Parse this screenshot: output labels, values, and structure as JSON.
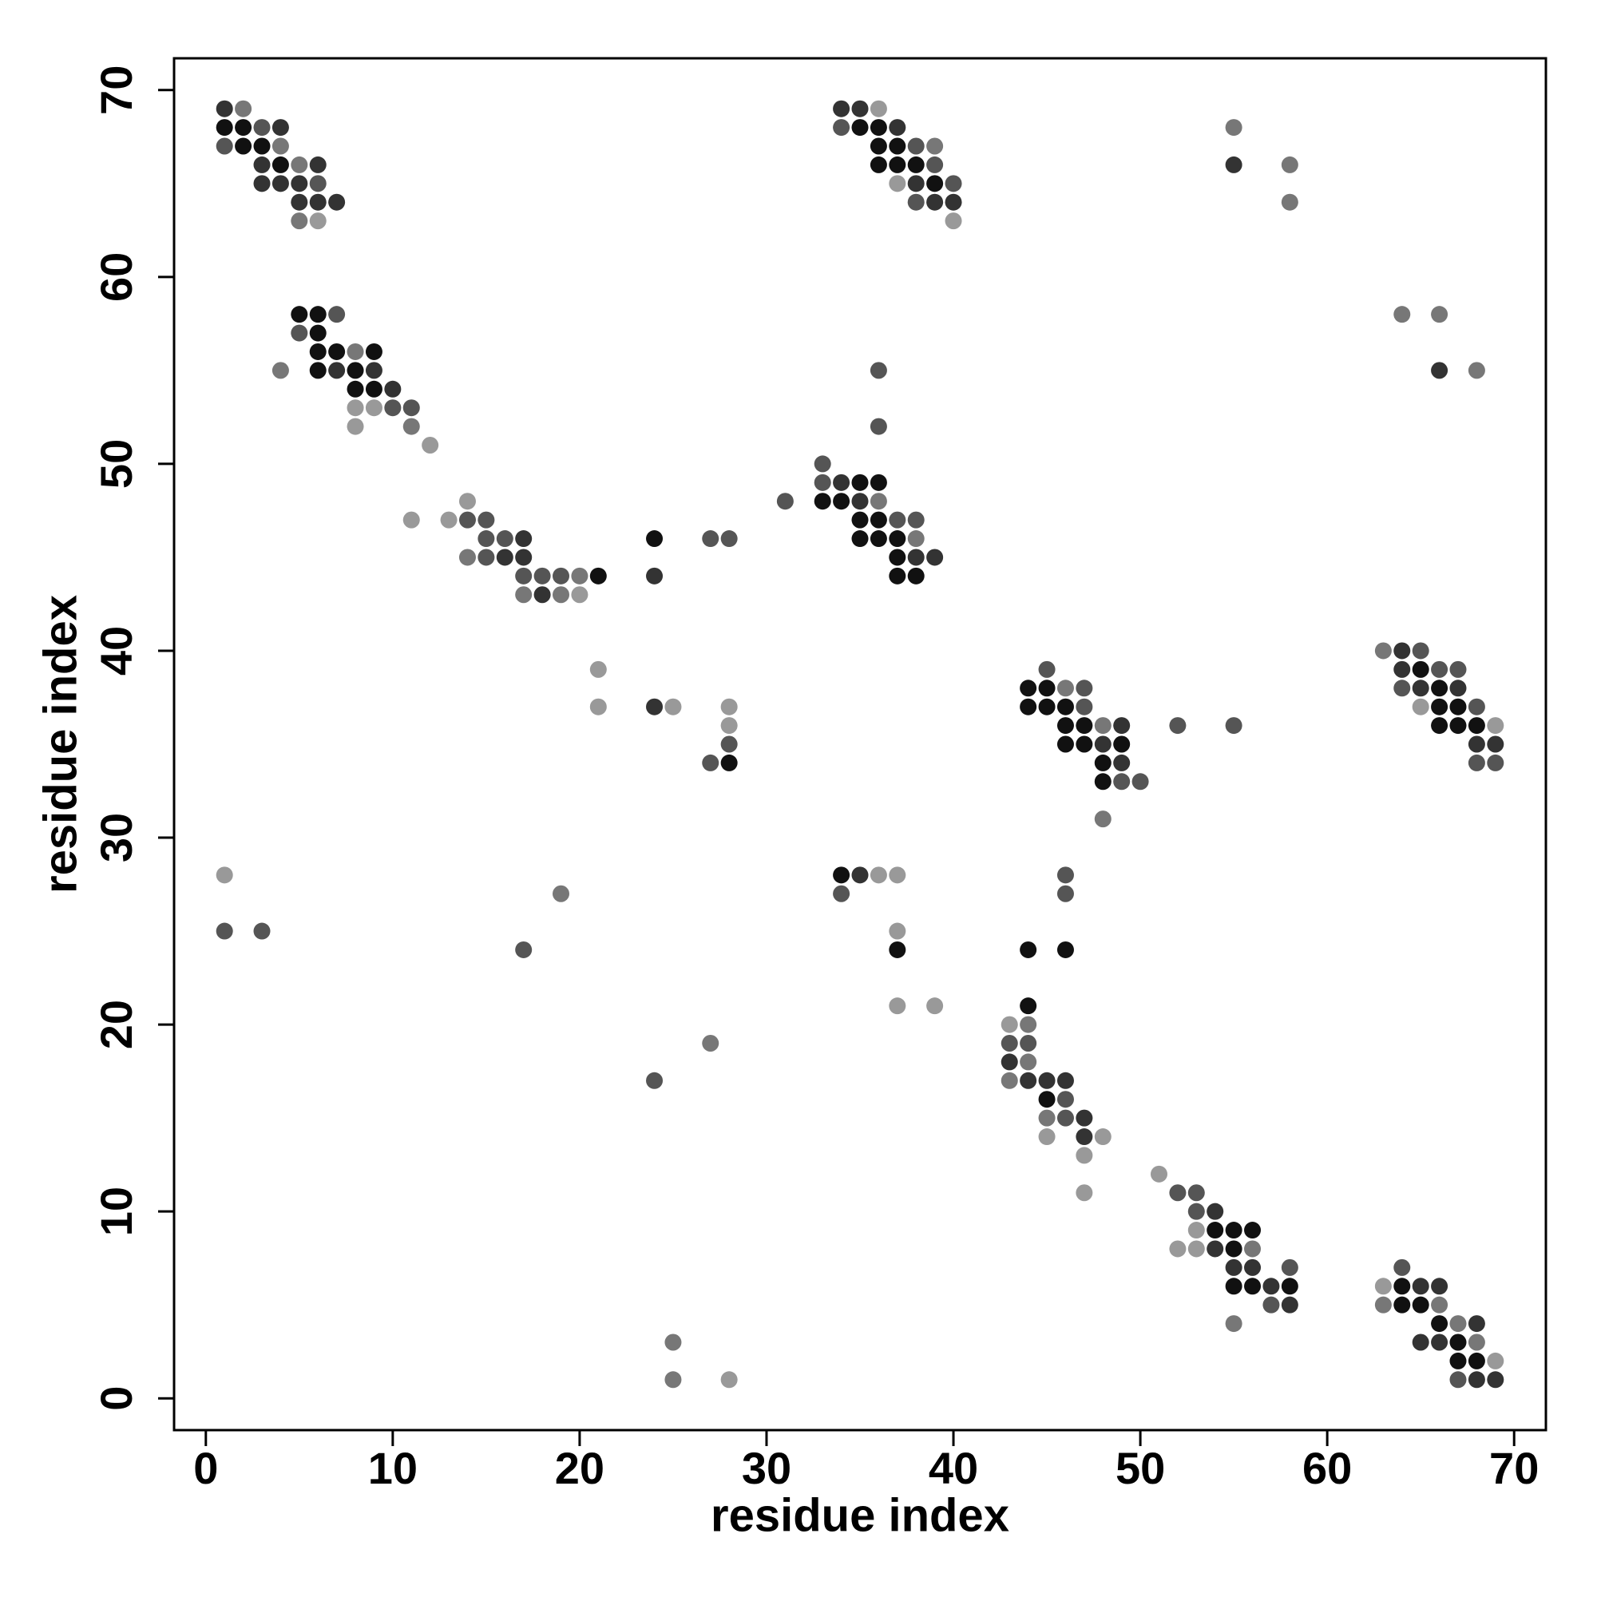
{
  "chart_data": {
    "type": "scatter",
    "xlabel": "residue index",
    "ylabel": "residue index",
    "xlim": [
      -1.7,
      71.7
    ],
    "ylim": [
      -1.7,
      71.7
    ],
    "xticks": [
      0,
      10,
      20,
      30,
      40,
      50,
      60,
      70
    ],
    "yticks": [
      0,
      10,
      20,
      30,
      40,
      50,
      60,
      70
    ],
    "rows": [
      {
        "y": 69,
        "x": [
          1,
          2,
          34,
          35,
          36
        ],
        "colors": [
          "#333333",
          "#777777",
          "#333333",
          "#333333",
          "#999999"
        ]
      },
      {
        "y": 68,
        "x": [
          1,
          2,
          3,
          4,
          34,
          35,
          36,
          37,
          55
        ],
        "colors": [
          "#111111",
          "#111111",
          "#555555",
          "#333333",
          "#555555",
          "#111111",
          "#111111",
          "#333333",
          "#777777"
        ]
      },
      {
        "y": 67,
        "x": [
          1,
          2,
          3,
          4,
          36,
          37,
          38,
          39
        ],
        "colors": [
          "#555555",
          "#111111",
          "#111111",
          "#777777",
          "#111111",
          "#111111",
          "#555555",
          "#777777"
        ]
      },
      {
        "y": 66,
        "x": [
          3,
          4,
          5,
          6,
          36,
          37,
          38,
          39,
          55,
          58
        ],
        "colors": [
          "#333333",
          "#111111",
          "#777777",
          "#333333",
          "#111111",
          "#111111",
          "#111111",
          "#555555",
          "#333333",
          "#777777"
        ]
      },
      {
        "y": 65,
        "x": [
          3,
          4,
          5,
          6,
          37,
          38,
          39,
          40
        ],
        "colors": [
          "#333333",
          "#333333",
          "#333333",
          "#555555",
          "#999999",
          "#333333",
          "#111111",
          "#555555"
        ]
      },
      {
        "y": 64,
        "x": [
          5,
          6,
          7,
          38,
          39,
          40,
          58
        ],
        "colors": [
          "#333333",
          "#333333",
          "#333333",
          "#555555",
          "#333333",
          "#333333",
          "#777777"
        ]
      },
      {
        "y": 63,
        "x": [
          5,
          6,
          40
        ],
        "colors": [
          "#777777",
          "#999999",
          "#999999"
        ]
      },
      {
        "y": 58,
        "x": [
          5,
          6,
          7,
          64,
          66
        ],
        "colors": [
          "#111111",
          "#111111",
          "#555555",
          "#777777",
          "#777777"
        ]
      },
      {
        "y": 57,
        "x": [
          5,
          6
        ],
        "colors": [
          "#555555",
          "#111111"
        ]
      },
      {
        "y": 56,
        "x": [
          6,
          7,
          8,
          9
        ],
        "colors": [
          "#111111",
          "#111111",
          "#777777",
          "#111111"
        ]
      },
      {
        "y": 55,
        "x": [
          4,
          6,
          7,
          8,
          9,
          36,
          66,
          68
        ],
        "colors": [
          "#777777",
          "#111111",
          "#333333",
          "#111111",
          "#333333",
          "#555555",
          "#333333",
          "#777777"
        ]
      },
      {
        "y": 54,
        "x": [
          8,
          9,
          10
        ],
        "colors": [
          "#111111",
          "#111111",
          "#333333"
        ]
      },
      {
        "y": 53,
        "x": [
          8,
          9,
          10,
          11
        ],
        "colors": [
          "#999999",
          "#999999",
          "#555555",
          "#555555"
        ]
      },
      {
        "y": 52,
        "x": [
          8,
          11,
          36
        ],
        "colors": [
          "#999999",
          "#777777",
          "#555555"
        ]
      },
      {
        "y": 51,
        "x": [
          12
        ],
        "colors": [
          "#999999"
        ]
      },
      {
        "y": 50,
        "x": [
          33
        ],
        "colors": [
          "#555555"
        ]
      },
      {
        "y": 49,
        "x": [
          33,
          34,
          35,
          36
        ],
        "colors": [
          "#555555",
          "#333333",
          "#111111",
          "#111111"
        ]
      },
      {
        "y": 48,
        "x": [
          14,
          31,
          33,
          34,
          35,
          36
        ],
        "colors": [
          "#999999",
          "#555555",
          "#111111",
          "#111111",
          "#333333",
          "#777777"
        ]
      },
      {
        "y": 47,
        "x": [
          11,
          13,
          14,
          15,
          35,
          36,
          37,
          38
        ],
        "colors": [
          "#999999",
          "#999999",
          "#555555",
          "#555555",
          "#111111",
          "#111111",
          "#555555",
          "#555555"
        ]
      },
      {
        "y": 46,
        "x": [
          15,
          16,
          17,
          24,
          27,
          28,
          35,
          36,
          37,
          38
        ],
        "colors": [
          "#555555",
          "#555555",
          "#333333",
          "#111111",
          "#555555",
          "#555555",
          "#111111",
          "#111111",
          "#111111",
          "#777777"
        ]
      },
      {
        "y": 45,
        "x": [
          14,
          15,
          16,
          17,
          37,
          38,
          39
        ],
        "colors": [
          "#777777",
          "#555555",
          "#333333",
          "#333333",
          "#111111",
          "#333333",
          "#333333"
        ]
      },
      {
        "y": 44,
        "x": [
          17,
          18,
          19,
          20,
          21,
          24,
          37,
          38
        ],
        "colors": [
          "#555555",
          "#555555",
          "#555555",
          "#777777",
          "#111111",
          "#333333",
          "#111111",
          "#111111"
        ]
      },
      {
        "y": 43,
        "x": [
          17,
          18,
          19,
          20
        ],
        "colors": [
          "#777777",
          "#333333",
          "#777777",
          "#999999"
        ]
      },
      {
        "y": 40,
        "x": [
          63,
          64,
          65
        ],
        "colors": [
          "#777777",
          "#333333",
          "#555555"
        ]
      },
      {
        "y": 39,
        "x": [
          21,
          45,
          64,
          65,
          66,
          67
        ],
        "colors": [
          "#999999",
          "#555555",
          "#333333",
          "#111111",
          "#555555",
          "#555555"
        ]
      },
      {
        "y": 38,
        "x": [
          44,
          45,
          46,
          47,
          64,
          65,
          66,
          67
        ],
        "colors": [
          "#111111",
          "#111111",
          "#777777",
          "#555555",
          "#555555",
          "#333333",
          "#111111",
          "#333333"
        ]
      },
      {
        "y": 37,
        "x": [
          21,
          24,
          25,
          28,
          44,
          45,
          46,
          47,
          65,
          66,
          67,
          68
        ],
        "colors": [
          "#999999",
          "#333333",
          "#999999",
          "#999999",
          "#111111",
          "#111111",
          "#111111",
          "#555555",
          "#999999",
          "#111111",
          "#111111",
          "#555555"
        ]
      },
      {
        "y": 36,
        "x": [
          28,
          46,
          47,
          48,
          49,
          52,
          55,
          66,
          67,
          68,
          69
        ],
        "colors": [
          "#999999",
          "#111111",
          "#111111",
          "#777777",
          "#333333",
          "#555555",
          "#555555",
          "#111111",
          "#111111",
          "#111111",
          "#999999"
        ]
      },
      {
        "y": 35,
        "x": [
          28,
          46,
          47,
          48,
          49,
          68,
          69
        ],
        "colors": [
          "#555555",
          "#111111",
          "#111111",
          "#333333",
          "#111111",
          "#333333",
          "#333333"
        ]
      },
      {
        "y": 34,
        "x": [
          27,
          28,
          48,
          49,
          68,
          69
        ],
        "colors": [
          "#555555",
          "#111111",
          "#111111",
          "#333333",
          "#555555",
          "#555555"
        ]
      },
      {
        "y": 33,
        "x": [
          48,
          49,
          50
        ],
        "colors": [
          "#111111",
          "#555555",
          "#555555"
        ]
      },
      {
        "y": 31,
        "x": [
          48
        ],
        "colors": [
          "#777777"
        ]
      },
      {
        "y": 28,
        "x": [
          1,
          34,
          35,
          36,
          37,
          46
        ],
        "colors": [
          "#999999",
          "#111111",
          "#333333",
          "#999999",
          "#999999",
          "#555555"
        ]
      },
      {
        "y": 27,
        "x": [
          19,
          34,
          46
        ],
        "colors": [
          "#777777",
          "#555555",
          "#555555"
        ]
      },
      {
        "y": 25,
        "x": [
          1,
          3,
          37
        ],
        "colors": [
          "#555555",
          "#555555",
          "#999999"
        ]
      },
      {
        "y": 24,
        "x": [
          17,
          37,
          44,
          46
        ],
        "colors": [
          "#555555",
          "#111111",
          "#111111",
          "#111111"
        ]
      },
      {
        "y": 21,
        "x": [
          37,
          39,
          44
        ],
        "colors": [
          "#999999",
          "#999999",
          "#111111"
        ]
      },
      {
        "y": 20,
        "x": [
          43,
          44
        ],
        "colors": [
          "#999999",
          "#777777"
        ]
      },
      {
        "y": 19,
        "x": [
          27,
          43,
          44
        ],
        "colors": [
          "#777777",
          "#555555",
          "#555555"
        ]
      },
      {
        "y": 18,
        "x": [
          43,
          44
        ],
        "colors": [
          "#333333",
          "#777777"
        ]
      },
      {
        "y": 17,
        "x": [
          24,
          43,
          44,
          45,
          46
        ],
        "colors": [
          "#555555",
          "#777777",
          "#333333",
          "#333333",
          "#333333"
        ]
      },
      {
        "y": 16,
        "x": [
          45,
          46
        ],
        "colors": [
          "#111111",
          "#555555"
        ]
      },
      {
        "y": 15,
        "x": [
          45,
          46,
          47
        ],
        "colors": [
          "#777777",
          "#555555",
          "#333333"
        ]
      },
      {
        "y": 14,
        "x": [
          45,
          47,
          48
        ],
        "colors": [
          "#999999",
          "#333333",
          "#999999"
        ]
      },
      {
        "y": 13,
        "x": [
          47
        ],
        "colors": [
          "#999999"
        ]
      },
      {
        "y": 12,
        "x": [
          51
        ],
        "colors": [
          "#999999"
        ]
      },
      {
        "y": 11,
        "x": [
          47,
          52,
          53
        ],
        "colors": [
          "#999999",
          "#555555",
          "#555555"
        ]
      },
      {
        "y": 10,
        "x": [
          53,
          54
        ],
        "colors": [
          "#555555",
          "#333333"
        ]
      },
      {
        "y": 9,
        "x": [
          53,
          54,
          55,
          56
        ],
        "colors": [
          "#999999",
          "#111111",
          "#111111",
          "#111111"
        ]
      },
      {
        "y": 8,
        "x": [
          52,
          53,
          54,
          55,
          56
        ],
        "colors": [
          "#999999",
          "#999999",
          "#333333",
          "#111111",
          "#777777"
        ]
      },
      {
        "y": 7,
        "x": [
          55,
          56,
          58,
          64
        ],
        "colors": [
          "#333333",
          "#333333",
          "#555555",
          "#555555"
        ]
      },
      {
        "y": 6,
        "x": [
          55,
          56,
          57,
          58,
          63,
          64,
          65,
          66
        ],
        "colors": [
          "#111111",
          "#111111",
          "#333333",
          "#111111",
          "#999999",
          "#111111",
          "#333333",
          "#333333"
        ]
      },
      {
        "y": 5,
        "x": [
          57,
          58,
          63,
          64,
          65,
          66
        ],
        "colors": [
          "#555555",
          "#333333",
          "#777777",
          "#111111",
          "#111111",
          "#777777"
        ]
      },
      {
        "y": 4,
        "x": [
          55,
          66,
          67,
          68
        ],
        "colors": [
          "#777777",
          "#111111",
          "#777777",
          "#333333"
        ]
      },
      {
        "y": 3,
        "x": [
          25,
          65,
          66,
          67,
          68
        ],
        "colors": [
          "#777777",
          "#333333",
          "#333333",
          "#111111",
          "#777777"
        ]
      },
      {
        "y": 2,
        "x": [
          67,
          68,
          69
        ],
        "colors": [
          "#111111",
          "#111111",
          "#999999"
        ]
      },
      {
        "y": 1,
        "x": [
          25,
          28,
          67,
          68,
          69
        ],
        "colors": [
          "#777777",
          "#999999",
          "#555555",
          "#333333",
          "#333333"
        ]
      }
    ]
  }
}
